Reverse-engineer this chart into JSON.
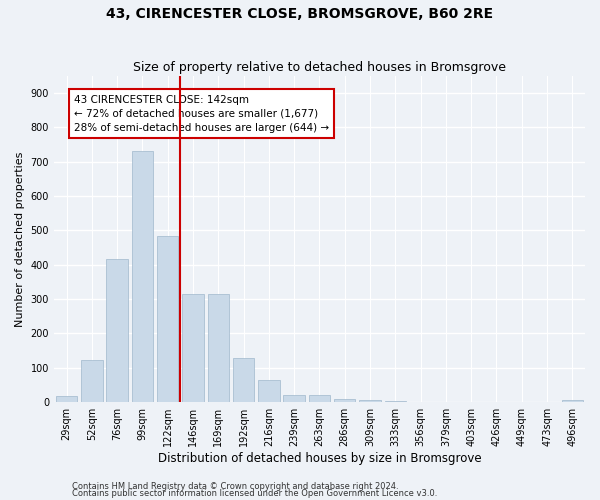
{
  "title": "43, CIRENCESTER CLOSE, BROMSGROVE, B60 2RE",
  "subtitle": "Size of property relative to detached houses in Bromsgrove",
  "xlabel": "Distribution of detached houses by size in Bromsgrove",
  "ylabel": "Number of detached properties",
  "bar_labels": [
    "29sqm",
    "52sqm",
    "76sqm",
    "99sqm",
    "122sqm",
    "146sqm",
    "169sqm",
    "192sqm",
    "216sqm",
    "239sqm",
    "263sqm",
    "286sqm",
    "309sqm",
    "333sqm",
    "356sqm",
    "379sqm",
    "403sqm",
    "426sqm",
    "449sqm",
    "473sqm",
    "496sqm"
  ],
  "bar_values": [
    18,
    122,
    418,
    730,
    483,
    315,
    315,
    130,
    65,
    22,
    20,
    8,
    6,
    3,
    2,
    1,
    1,
    0,
    0,
    0,
    6
  ],
  "bar_color": "#c9d9e8",
  "bar_edgecolor": "#a0b8cc",
  "vline_color": "#cc0000",
  "annotation_title": "43 CIRENCESTER CLOSE: 142sqm",
  "annotation_line1": "← 72% of detached houses are smaller (1,677)",
  "annotation_line2": "28% of semi-detached houses are larger (644) →",
  "annotation_box_edgecolor": "#cc0000",
  "ylim": [
    0,
    950
  ],
  "yticks": [
    0,
    100,
    200,
    300,
    400,
    500,
    600,
    700,
    800,
    900
  ],
  "footnote1": "Contains HM Land Registry data © Crown copyright and database right 2024.",
  "footnote2": "Contains public sector information licensed under the Open Government Licence v3.0.",
  "bg_color": "#eef2f7",
  "plot_bg_color": "#eef2f7",
  "grid_color": "#ffffff",
  "title_fontsize": 10,
  "subtitle_fontsize": 9,
  "tick_fontsize": 7,
  "ylabel_fontsize": 8,
  "xlabel_fontsize": 8.5,
  "footnote_fontsize": 6
}
